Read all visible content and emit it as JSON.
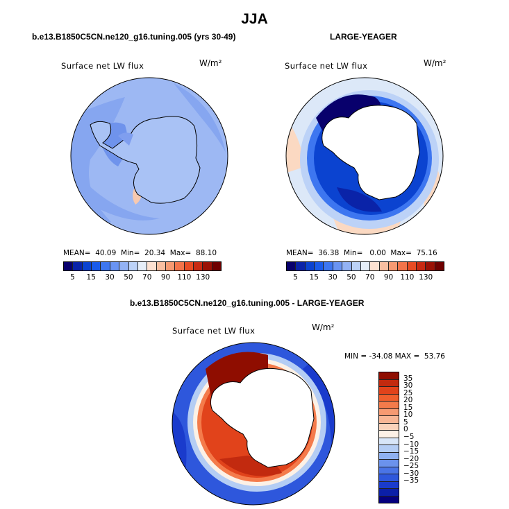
{
  "title": "JJA",
  "panels": [
    {
      "name": "b.e13.B1850C5CN.ne120_g16.tuning.005 (yrs 30-49)",
      "variable": "Surface net LW flux",
      "unit": "W/m²",
      "stats": "MEAN=  40.09  Min=  20.34  Max=  88.10"
    },
    {
      "name": "LARGE-YEAGER",
      "variable": "Surface net LW flux",
      "unit": "W/m²",
      "stats": "MEAN=  36.38  Min=   0.00  Max=  75.16"
    }
  ],
  "diff_panel": {
    "name": "b.e13.B1850C5CN.ne120_g16.tuning.005 - LARGE-YEAGER",
    "variable": "Surface net LW flux",
    "unit": "W/m²",
    "stats": "MIN = -34.08 MAX =  53.76"
  },
  "colorbar_abs": {
    "colors": [
      "#08006c",
      "#0a23a8",
      "#0b43d0",
      "#1a5bea",
      "#3d76f0",
      "#6a94f2",
      "#93b2f4",
      "#bcd2f7",
      "#e6eef8",
      "#fde2d2",
      "#f9bfa1",
      "#f69a72",
      "#f3744a",
      "#e84c24",
      "#c82a12",
      "#9a1105",
      "#6e0000"
    ],
    "ticks": [
      "5",
      "15",
      "30",
      "50",
      "70",
      "90",
      "110",
      "130"
    ]
  },
  "colorbar_diff": {
    "colors": [
      "#8f0d00",
      "#c22a0f",
      "#e1431b",
      "#f05f2d",
      "#f47b4b",
      "#f69a72",
      "#f8b695",
      "#fad3bb",
      "#fcf1e6",
      "#d8e6f8",
      "#b4cdf4",
      "#8fb1f0",
      "#6b92ec",
      "#4a74e6",
      "#2e57dc",
      "#1a3bcc",
      "#0b1fa8",
      "#05007e"
    ],
    "ticks": [
      "35",
      "30",
      "25",
      "20",
      "15",
      "10",
      "5",
      "0",
      "−5",
      "−10",
      "−15",
      "−20",
      "−25",
      "−30",
      "−35"
    ]
  }
}
